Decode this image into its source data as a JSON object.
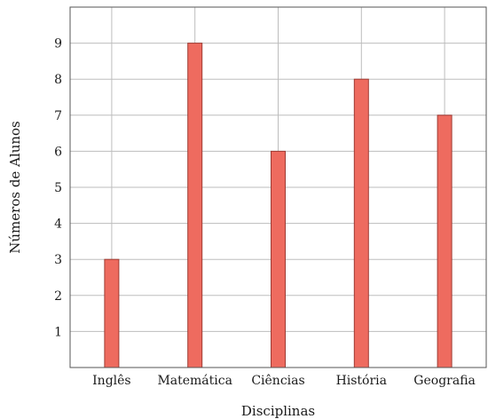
{
  "chart_data": {
    "type": "bar",
    "title": "",
    "xlabel": "Disciplinas",
    "ylabel": "Números de Alunos",
    "categories": [
      "Inglês",
      "Matemática",
      "Ciências",
      "História",
      "Geografia"
    ],
    "values": [
      3,
      9,
      6,
      8,
      7
    ],
    "ylim": [
      0,
      10
    ],
    "yticks": [
      1,
      2,
      3,
      4,
      5,
      6,
      7,
      8,
      9
    ],
    "grid": true,
    "colors": {
      "bar_fill": "#ee6b5f",
      "bar_edge": "#9e3b33"
    }
  }
}
